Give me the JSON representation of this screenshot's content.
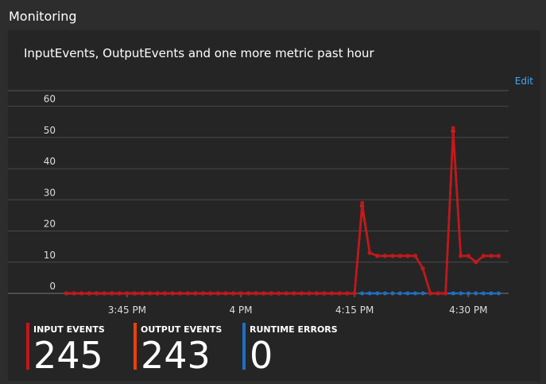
{
  "panel": {
    "title": "Monitoring",
    "edit": "Edit"
  },
  "chart_data": {
    "type": "line",
    "title": "InputEvents, OutputEvents and one more metric past hour",
    "x": [
      "3:37 PM",
      "3:38 PM",
      "3:39 PM",
      "3:40 PM",
      "3:41 PM",
      "3:42 PM",
      "3:43 PM",
      "3:44 PM",
      "3:45 PM",
      "3:46 PM",
      "3:47 PM",
      "3:48 PM",
      "3:49 PM",
      "3:50 PM",
      "3:51 PM",
      "3:52 PM",
      "3:53 PM",
      "3:54 PM",
      "3:55 PM",
      "3:56 PM",
      "3:57 PM",
      "3:58 PM",
      "3:59 PM",
      "4:00 PM",
      "4:01 PM",
      "4:02 PM",
      "4:03 PM",
      "4:04 PM",
      "4:05 PM",
      "4:06 PM",
      "4:07 PM",
      "4:08 PM",
      "4:09 PM",
      "4:10 PM",
      "4:11 PM",
      "4:12 PM",
      "4:13 PM",
      "4:14 PM",
      "4:15 PM",
      "4:16 PM",
      "4:17 PM",
      "4:18 PM",
      "4:19 PM",
      "4:20 PM",
      "4:21 PM",
      "4:22 PM",
      "4:23 PM",
      "4:24 PM",
      "4:25 PM",
      "4:26 PM",
      "4:27 PM",
      "4:28 PM",
      "4:29 PM",
      "4:30 PM",
      "4:31 PM",
      "4:32 PM",
      "4:33 PM",
      "4:34 PM"
    ],
    "series": [
      {
        "name": "INPUT EVENTS",
        "color": "#c4161c",
        "values": [
          0,
          0,
          0,
          0,
          0,
          0,
          0,
          0,
          0,
          0,
          0,
          0,
          0,
          0,
          0,
          0,
          0,
          0,
          0,
          0,
          0,
          0,
          0,
          0,
          0,
          0,
          0,
          0,
          0,
          0,
          0,
          0,
          0,
          0,
          0,
          0,
          0,
          0,
          0,
          29,
          13,
          12,
          12,
          12,
          12,
          12,
          12,
          8,
          0,
          0,
          0,
          53,
          12,
          12,
          10,
          12,
          12,
          12
        ]
      },
      {
        "name": "OUTPUT EVENTS",
        "color": "#e8420c",
        "values": [
          0,
          0,
          0,
          0,
          0,
          0,
          0,
          0,
          0,
          0,
          0,
          0,
          0,
          0,
          0,
          0,
          0,
          0,
          0,
          0,
          0,
          0,
          0,
          0,
          0,
          0,
          0,
          0,
          0,
          0,
          0,
          0,
          0,
          0,
          0,
          0,
          0,
          0,
          0,
          28,
          13,
          12,
          12,
          12,
          12,
          12,
          12,
          8,
          0,
          0,
          0,
          52,
          12,
          12,
          10,
          12,
          12,
          12
        ]
      },
      {
        "name": "RUNTIME ERRORS",
        "color": "#1e6fc4",
        "values": [
          0,
          0,
          0,
          0,
          0,
          0,
          0,
          0,
          0,
          0,
          0,
          0,
          0,
          0,
          0,
          0,
          0,
          0,
          0,
          0,
          0,
          0,
          0,
          0,
          0,
          0,
          0,
          0,
          0,
          0,
          0,
          0,
          0,
          0,
          0,
          0,
          0,
          0,
          0,
          0,
          0,
          0,
          0,
          0,
          0,
          0,
          0,
          0,
          0,
          0,
          0,
          0,
          0,
          0,
          0,
          0,
          0,
          0
        ]
      }
    ],
    "xlim": [
      "3:36 PM",
      "4:35 PM"
    ],
    "xticks": [
      "3:45 PM",
      "4 PM",
      "4:15 PM",
      "4:30 PM"
    ],
    "ylim": [
      0,
      65
    ],
    "yticks": [
      0,
      10,
      20,
      30,
      40,
      50,
      60
    ],
    "grid": true
  },
  "summary": [
    {
      "label": "INPUT EVENTS",
      "value": "245"
    },
    {
      "label": "OUTPUT EVENTS",
      "value": "243"
    },
    {
      "label": "RUNTIME ERRORS",
      "value": "0"
    }
  ]
}
